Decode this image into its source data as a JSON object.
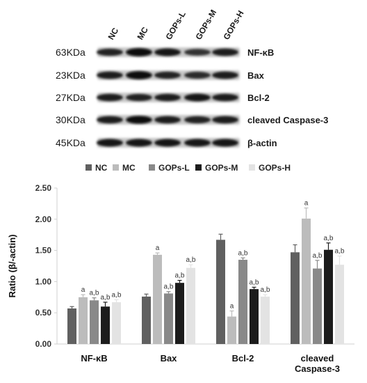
{
  "blot": {
    "lanes": [
      "NC",
      "MC",
      "GOPs-L",
      "GOPs-M",
      "GOPs-H"
    ],
    "rows": [
      {
        "mw": "63KDa",
        "protein": "NF-κB",
        "intensity": [
          0.75,
          0.95,
          0.85,
          0.65,
          0.8
        ]
      },
      {
        "mw": "23KDa",
        "protein": "Bax",
        "intensity": [
          0.8,
          0.95,
          0.75,
          0.7,
          0.8
        ]
      },
      {
        "mw": "27KDa",
        "protein": "Bcl-2",
        "intensity": [
          0.8,
          0.75,
          0.8,
          0.85,
          0.8
        ]
      },
      {
        "mw": "30KDa",
        "protein": "cleaved  Caspase-3",
        "intensity": [
          0.8,
          0.9,
          0.8,
          0.75,
          0.8
        ]
      },
      {
        "mw": "45KDa",
        "protein": "β-actin",
        "intensity": [
          0.85,
          0.85,
          0.85,
          0.85,
          0.85
        ]
      }
    ]
  },
  "chart_data": {
    "type": "bar",
    "categories": [
      "NF-κB",
      "Bax",
      "Bcl-2",
      "cleaved Caspase-3"
    ],
    "category_lines": [
      [
        "NF-κB"
      ],
      [
        "Bax"
      ],
      [
        "Bcl-2"
      ],
      [
        "cleaved",
        "Caspase-3"
      ]
    ],
    "series": [
      {
        "name": "NC",
        "color": "#606060",
        "values": [
          0.57,
          0.76,
          1.67,
          1.47
        ],
        "errors": [
          0.03,
          0.04,
          0.09,
          0.12
        ],
        "annotations": [
          "",
          "",
          "",
          ""
        ]
      },
      {
        "name": "MC",
        "color": "#bcbcbc",
        "values": [
          0.75,
          1.43,
          0.44,
          2.01
        ],
        "errors": [
          0.04,
          0.03,
          0.09,
          0.17
        ],
        "annotations": [
          "a",
          "a",
          "a",
          "a"
        ]
      },
      {
        "name": "GOPs-L",
        "color": "#898989",
        "values": [
          0.7,
          0.81,
          1.35,
          1.21
        ],
        "errors": [
          0.04,
          0.03,
          0.03,
          0.13
        ],
        "annotations": [
          "a,b",
          "a,b",
          "a,b",
          "a,b"
        ]
      },
      {
        "name": "GOPs-M",
        "color": "#1c1c1c",
        "values": [
          0.6,
          0.98,
          0.88,
          1.51
        ],
        "errors": [
          0.07,
          0.04,
          0.03,
          0.11
        ],
        "annotations": [
          "a,b",
          "a,b",
          "a,b",
          "a,b"
        ]
      },
      {
        "name": "GOPs-H",
        "color": "#e3e3e3",
        "values": [
          0.67,
          1.22,
          0.76,
          1.27
        ],
        "errors": [
          0.04,
          0.05,
          0.03,
          0.14
        ],
        "annotations": [
          "a,b",
          "a,b",
          "a,b",
          "a,b"
        ]
      }
    ],
    "ylabel": "Ratio (β/-actin)",
    "ylim": [
      0,
      2.5
    ],
    "yticks": [
      "0.00",
      "0.50",
      "1.00",
      "1.50",
      "2.00",
      "2.50"
    ],
    "grid": false,
    "legend_position": "top"
  }
}
